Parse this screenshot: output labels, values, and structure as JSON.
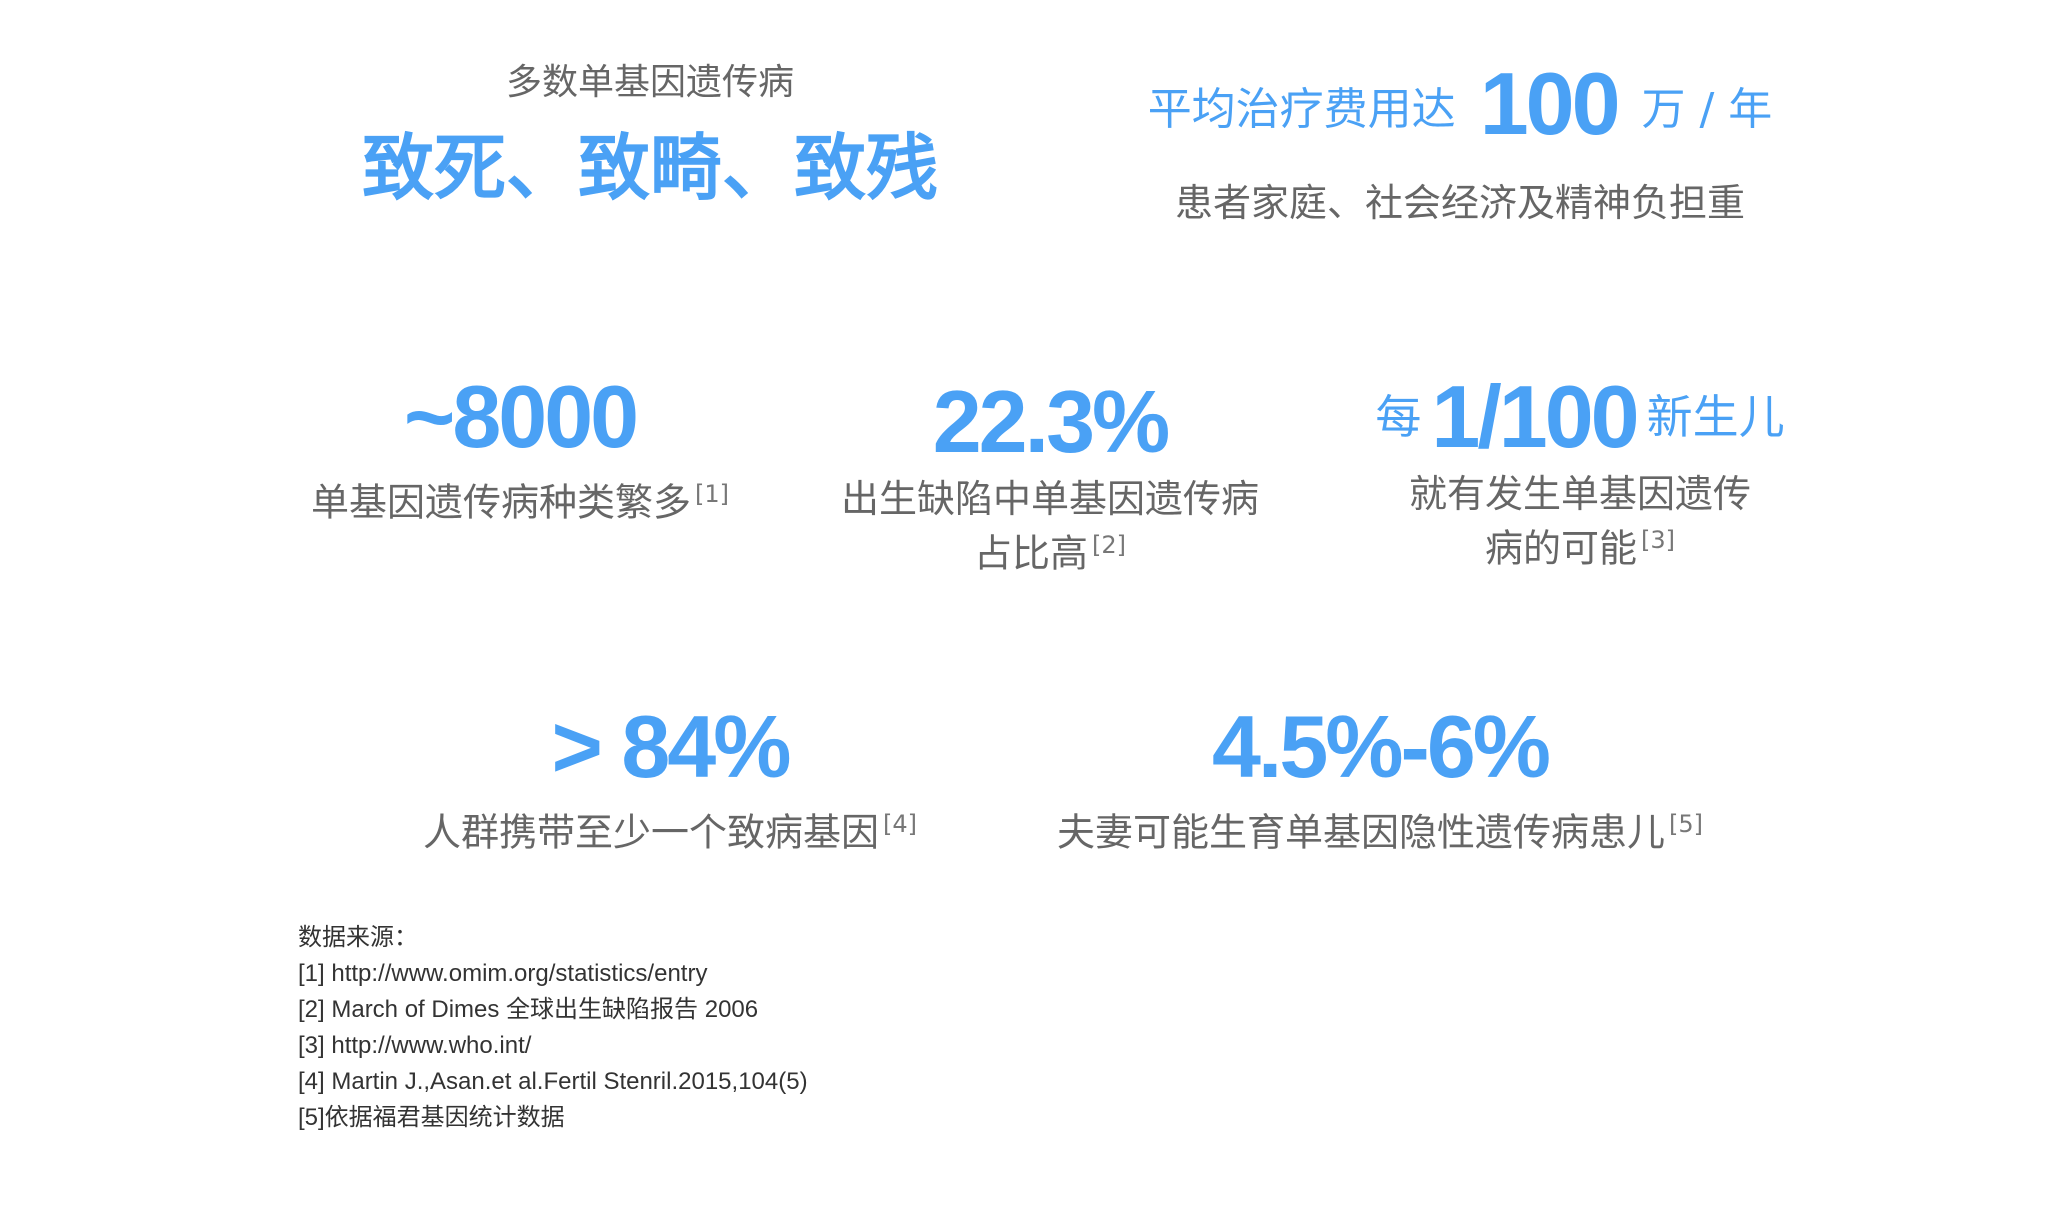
{
  "top_left": {
    "pre": "多数单基因遗传病",
    "headline": "致死、致畸、致残"
  },
  "top_right": {
    "pre": "平均治疗费用达",
    "number": "100",
    "post": "万 / 年",
    "subtitle": "患者家庭、社会经济及精神负担重"
  },
  "stats": [
    {
      "prefix": "",
      "value": "~8000",
      "suffix": "",
      "lines": [
        "单基因遗传病种类繁多"
      ],
      "ref": "[1]"
    },
    {
      "prefix": "",
      "value": "22.3%",
      "suffix": "",
      "lines": [
        "出生缺陷中单基因遗传病",
        "占比高"
      ],
      "ref": "[2]"
    },
    {
      "prefix": "每",
      "value": "1/100",
      "suffix": "新生儿",
      "lines": [
        "就有发生单基因遗传",
        "病的可能"
      ],
      "ref": "[3]"
    },
    {
      "prefix": "",
      "value": "> 84%",
      "suffix": "",
      "lines": [
        "人群携带至少一个致病基因"
      ],
      "ref": "[4]"
    },
    {
      "prefix": "",
      "value": "4.5%-6%",
      "suffix": "",
      "lines": [
        "夫妻可能生育单基因隐性遗传病患儿"
      ],
      "ref": "[5]"
    }
  ],
  "sources": {
    "title": "数据来源：",
    "items": [
      "[1] http://www.omim.org/statistics/entry",
      "[2] March of Dimes 全球出生缺陷报告 2006",
      "[3] http://www.who.int/",
      "[4] Martin J.,Asan.et al.Fertil Stenril.2015,104(5)",
      "[5]依据福君基因统计数据"
    ]
  },
  "colors": {
    "accent": "#4aa1f5",
    "text": "#666666"
  }
}
